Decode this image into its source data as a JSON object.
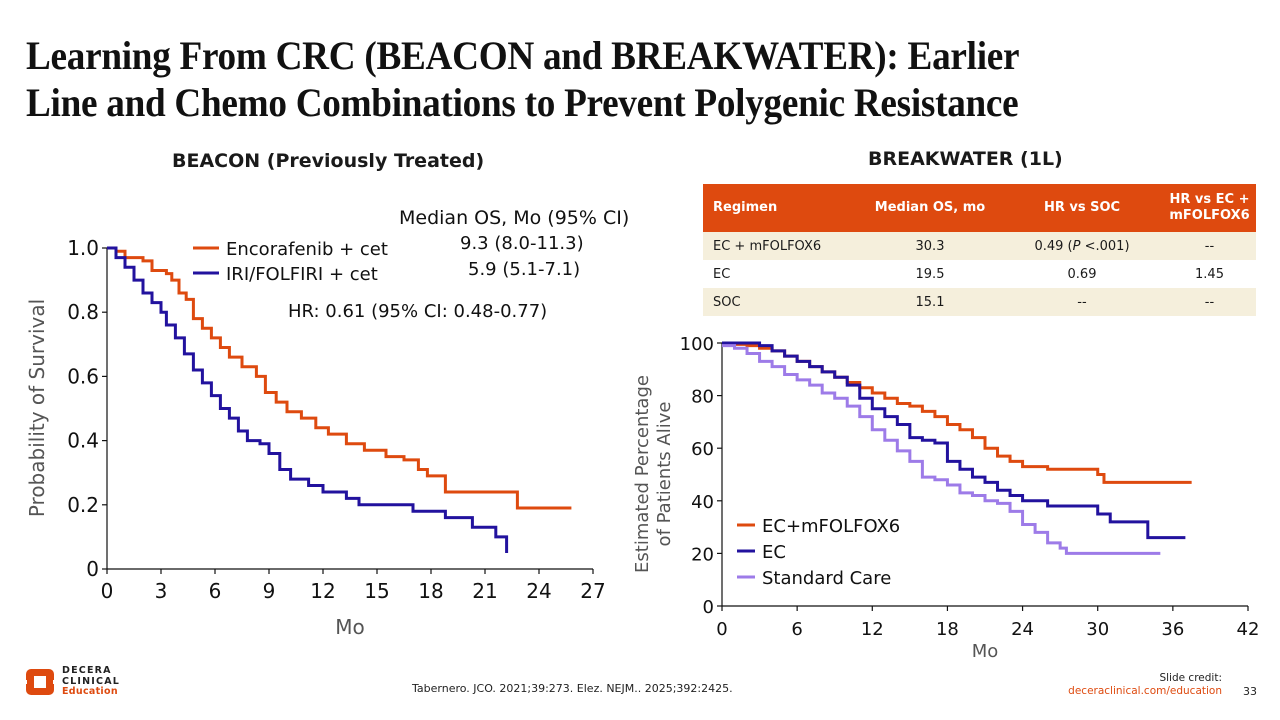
{
  "slide": {
    "title_line1": "Learning From CRC (BEACON and BREAKWATER): Earlier",
    "title_line2": "Line and Chemo Combinations to Prevent Polygenic Resistance",
    "page_number": "33",
    "citation": "Tabernero. JCO. 2021;39:273. Elez. NEJM.. 2025;392:2425.",
    "credit_label": "Slide credit:",
    "credit_url": "deceraclinical.com/education",
    "logo": {
      "line1": "DECERA",
      "line2": "CLINICAL",
      "line3": "Education"
    },
    "colors": {
      "accent": "#de4a0f",
      "orange_series": "#de4a0f",
      "navy_series": "#22129e",
      "lavender_series": "#9d7be8",
      "table_shade": "#f5efdc"
    }
  },
  "beacon": {
    "heading": "BEACON (Previously Treated)",
    "median_header": "Median OS, Mo (95% CI)",
    "median_rows": [
      "9.3 (8.0-11.3)",
      "5.9 (5.1-7.1)"
    ],
    "hr_text": "HR: 0.61 (95% CI: 0.48-0.77)"
  },
  "breakwater": {
    "heading": "BREAKWATER (1L)",
    "table": {
      "headers": [
        "Regimen",
        "Median OS, mo",
        "HR vs SOC",
        "HR vs EC + mFOLFOX6"
      ],
      "rows": [
        {
          "regimen": "EC + mFOLFOX6",
          "median_os": "30.3",
          "hr_soc_value": "0.49",
          "hr_soc_p_label": "P",
          "hr_soc_p_value": "<.001",
          "hr_ec": "--"
        },
        {
          "regimen": "EC",
          "median_os": "19.5",
          "hr_soc": "0.69",
          "hr_ec": "1.45"
        },
        {
          "regimen": "SOC",
          "median_os": "15.1",
          "hr_soc": "--",
          "hr_ec": "--"
        }
      ]
    }
  },
  "chart_data": [
    {
      "type": "line",
      "step": true,
      "title": "BEACON (Previously Treated)",
      "xlabel": "Mo",
      "ylabel": "Probability of Survival",
      "xlim": [
        0,
        27
      ],
      "ylim": [
        0,
        1.0
      ],
      "xticks": [
        "0",
        "3",
        "6",
        "9",
        "12",
        "15",
        "18",
        "21",
        "24",
        "27"
      ],
      "yticks": [
        "0",
        "0.2",
        "0.4",
        "0.6",
        "0.8",
        "1.0"
      ],
      "xtick_values": [
        0,
        3,
        6,
        9,
        12,
        15,
        18,
        21,
        24,
        27
      ],
      "ytick_values": [
        0,
        0.2,
        0.4,
        0.6,
        0.8,
        1.0
      ],
      "legend_position": "top",
      "series": [
        {
          "name": "Encorafenib + cet",
          "color": "#de4a0f",
          "x": [
            0,
            0.5,
            1,
            2,
            2.5,
            3.3,
            3.6,
            4,
            4.4,
            4.8,
            5.3,
            5.8,
            6.3,
            6.8,
            7.5,
            8.3,
            8.8,
            9.4,
            10,
            10.8,
            11.6,
            12.3,
            13.3,
            14.3,
            15.5,
            16.5,
            17.3,
            17.8,
            18.8,
            22.8,
            25.8
          ],
          "y": [
            1.0,
            0.99,
            0.97,
            0.96,
            0.93,
            0.92,
            0.9,
            0.86,
            0.84,
            0.78,
            0.75,
            0.72,
            0.69,
            0.66,
            0.63,
            0.6,
            0.55,
            0.52,
            0.49,
            0.47,
            0.44,
            0.42,
            0.39,
            0.37,
            0.35,
            0.34,
            0.31,
            0.29,
            0.24,
            0.19,
            0.19
          ]
        },
        {
          "name": "IRI/FOLFIRI + cet",
          "color": "#22129e",
          "x": [
            0,
            0.5,
            1,
            1.5,
            2,
            2.5,
            3,
            3.3,
            3.8,
            4.3,
            4.8,
            5.3,
            5.8,
            6.3,
            6.8,
            7.3,
            7.8,
            8.5,
            9,
            9.6,
            10.2,
            11.2,
            12,
            13.3,
            14,
            17,
            18.8,
            20.3,
            21.6,
            22.2
          ],
          "y": [
            1.0,
            0.97,
            0.94,
            0.9,
            0.86,
            0.83,
            0.8,
            0.76,
            0.72,
            0.67,
            0.62,
            0.58,
            0.54,
            0.5,
            0.47,
            0.43,
            0.4,
            0.39,
            0.36,
            0.31,
            0.28,
            0.26,
            0.24,
            0.22,
            0.2,
            0.18,
            0.16,
            0.13,
            0.1,
            0.05
          ]
        }
      ]
    },
    {
      "type": "line",
      "step": true,
      "title": "BREAKWATER (1L)",
      "xlabel": "Mo",
      "ylabel": "Estimated Percentage of Patients Alive",
      "ylabel_lines": [
        "Estimated Percentage",
        "of Patients Alive"
      ],
      "xlim": [
        0,
        42
      ],
      "ylim": [
        0,
        100
      ],
      "xticks": [
        "0",
        "6",
        "12",
        "18",
        "24",
        "30",
        "36",
        "42"
      ],
      "yticks": [
        "0",
        "20",
        "40",
        "60",
        "80",
        "100"
      ],
      "xtick_values": [
        0,
        6,
        12,
        18,
        24,
        30,
        36,
        42
      ],
      "ytick_values": [
        0,
        20,
        40,
        60,
        80,
        100
      ],
      "legend_position": "bottom-left",
      "series": [
        {
          "name": "EC+mFOLFOX6",
          "color": "#de4a0f",
          "x": [
            0,
            1,
            2,
            3,
            4,
            5,
            6,
            7,
            8,
            9,
            10,
            11,
            12,
            13,
            14,
            15,
            16,
            17,
            18,
            19,
            20,
            21,
            22,
            23,
            24,
            26,
            28,
            30,
            30.5,
            37.5
          ],
          "y": [
            100,
            99.5,
            99,
            98,
            97,
            95,
            93,
            91,
            89,
            87,
            85,
            83,
            81,
            79,
            77,
            76,
            74,
            72,
            69,
            67,
            64,
            60,
            57,
            55,
            53,
            52,
            52,
            50,
            47,
            47
          ]
        },
        {
          "name": "EC",
          "color": "#22129e",
          "x": [
            0,
            1,
            2,
            3,
            4,
            5,
            6,
            7,
            8,
            9,
            10,
            11,
            12,
            13,
            14,
            15,
            16,
            17,
            18,
            19,
            20,
            21,
            22,
            23,
            24,
            26,
            28,
            30,
            31,
            34,
            37
          ],
          "y": [
            100,
            100,
            100,
            99,
            97,
            95,
            93,
            91,
            89,
            87,
            84,
            79,
            75,
            72,
            69,
            64,
            63,
            62,
            55,
            52,
            49,
            47,
            44,
            42,
            40,
            38,
            38,
            35,
            32,
            26,
            26
          ]
        },
        {
          "name": "Standard Care",
          "color": "#9d7be8",
          "x": [
            0,
            1,
            2,
            3,
            4,
            5,
            6,
            7,
            8,
            9,
            10,
            11,
            12,
            13,
            14,
            15,
            16,
            17,
            18,
            19,
            20,
            21,
            22,
            23,
            24,
            25,
            26,
            27,
            27.5,
            35
          ],
          "y": [
            99,
            98,
            96,
            93,
            91,
            88,
            86,
            84,
            81,
            79,
            76,
            72,
            67,
            63,
            59,
            55,
            49,
            48,
            46,
            43,
            42,
            40,
            39,
            36,
            31,
            28,
            24,
            22,
            20,
            20
          ]
        }
      ]
    }
  ]
}
